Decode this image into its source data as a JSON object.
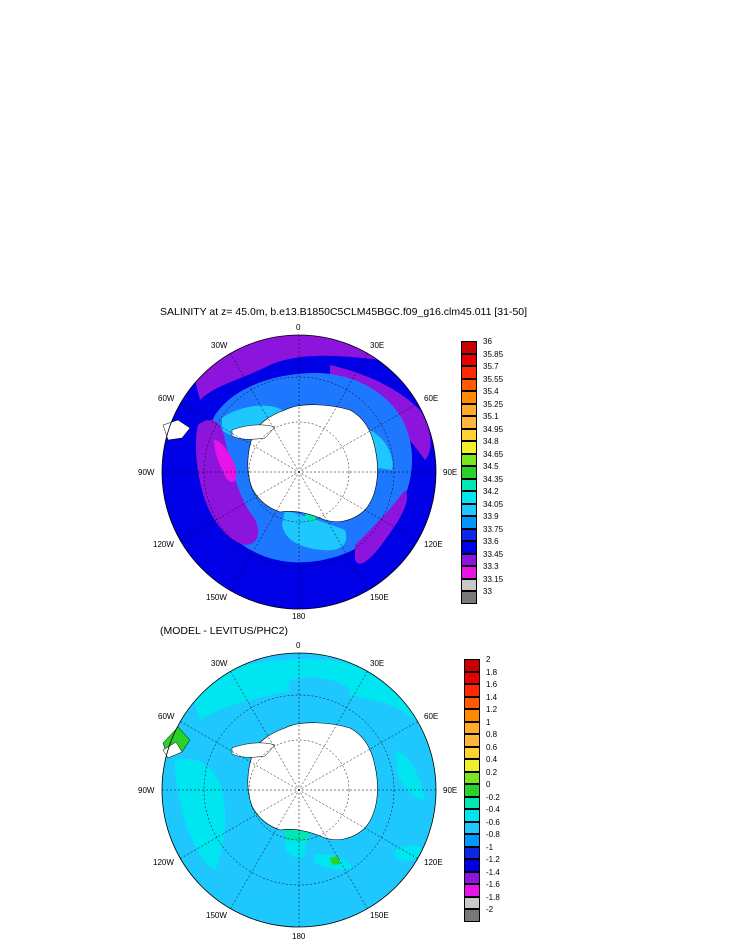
{
  "panel1": {
    "title": "SALINITY at z=  45.0m, b.e13.B1850C5CLM45BGC.f09_g16.clm45.011 [31-50]",
    "lon_labels": [
      "0",
      "30E",
      "60E",
      "90E",
      "120E",
      "150E",
      "180",
      "150W",
      "120W",
      "90W",
      "60W",
      "30W"
    ],
    "colorbar": {
      "labels": [
        "36",
        "35.85",
        "35.7",
        "35.55",
        "35.4",
        "35.25",
        "35.1",
        "34.95",
        "34.8",
        "34.65",
        "34.5",
        "34.35",
        "34.2",
        "34.05",
        "33.9",
        "33.75",
        "33.6",
        "33.45",
        "33.3",
        "33.15",
        "33"
      ],
      "colors": [
        "#c80000",
        "#e60000",
        "#ff2800",
        "#ff5a00",
        "#ff8c00",
        "#ffaa28",
        "#ffb43c",
        "#ffd232",
        "#f0f028",
        "#78e61e",
        "#28d228",
        "#00e6b4",
        "#00e6f0",
        "#1ec8ff",
        "#0096ff",
        "#0a28e6",
        "#0000e6",
        "#8c14dc",
        "#e614e6",
        "#c8c8c8",
        "#787878"
      ]
    }
  },
  "panel2": {
    "title": "(MODEL - LEVITUS/PHC2)",
    "lon_labels": [
      "0",
      "30E",
      "60E",
      "90E",
      "120E",
      "150E",
      "180",
      "150W",
      "120W",
      "90W",
      "60W",
      "30W"
    ],
    "colorbar": {
      "labels": [
        "2",
        "1.8",
        "1.6",
        "1.4",
        "1.2",
        "1",
        "0.8",
        "0.6",
        "0.4",
        "0.2",
        "0",
        "-0.2",
        "-0.4",
        "-0.6",
        "-0.8",
        "-1",
        "-1.2",
        "-1.4",
        "-1.6",
        "-1.8",
        "-2"
      ],
      "colors": [
        "#c80000",
        "#e60000",
        "#ff2800",
        "#ff5a00",
        "#ff8c00",
        "#ffaa28",
        "#ffb43c",
        "#ffd232",
        "#f0f028",
        "#78e61e",
        "#28d228",
        "#00e6b4",
        "#00e6f0",
        "#1ec8ff",
        "#0096ff",
        "#0a28e6",
        "#0000e6",
        "#8c14dc",
        "#e614e6",
        "#c8c8c8",
        "#787878"
      ]
    }
  }
}
